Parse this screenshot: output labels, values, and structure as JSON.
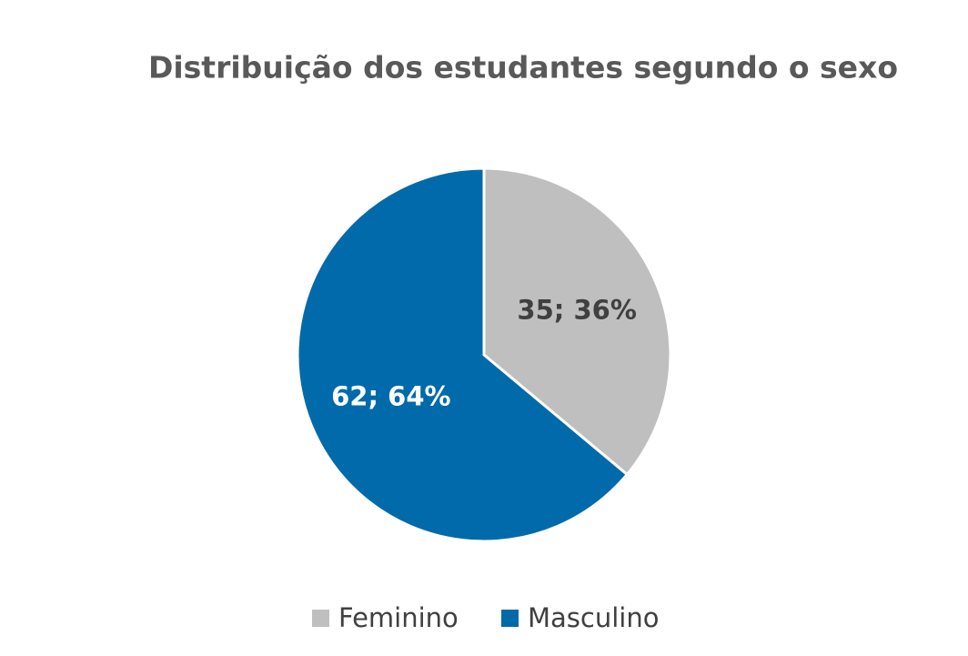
{
  "chart_data": {
    "type": "pie",
    "title": "Distribuição dos estudantes segundo o sexo",
    "categories": [
      "Feminino",
      "Masculino"
    ],
    "values": [
      35,
      62
    ],
    "value_labels": [
      "35; 36%",
      "62; 64%"
    ],
    "colors": [
      "#bfbfbf",
      "#006aaa"
    ],
    "legend": "bottom"
  }
}
